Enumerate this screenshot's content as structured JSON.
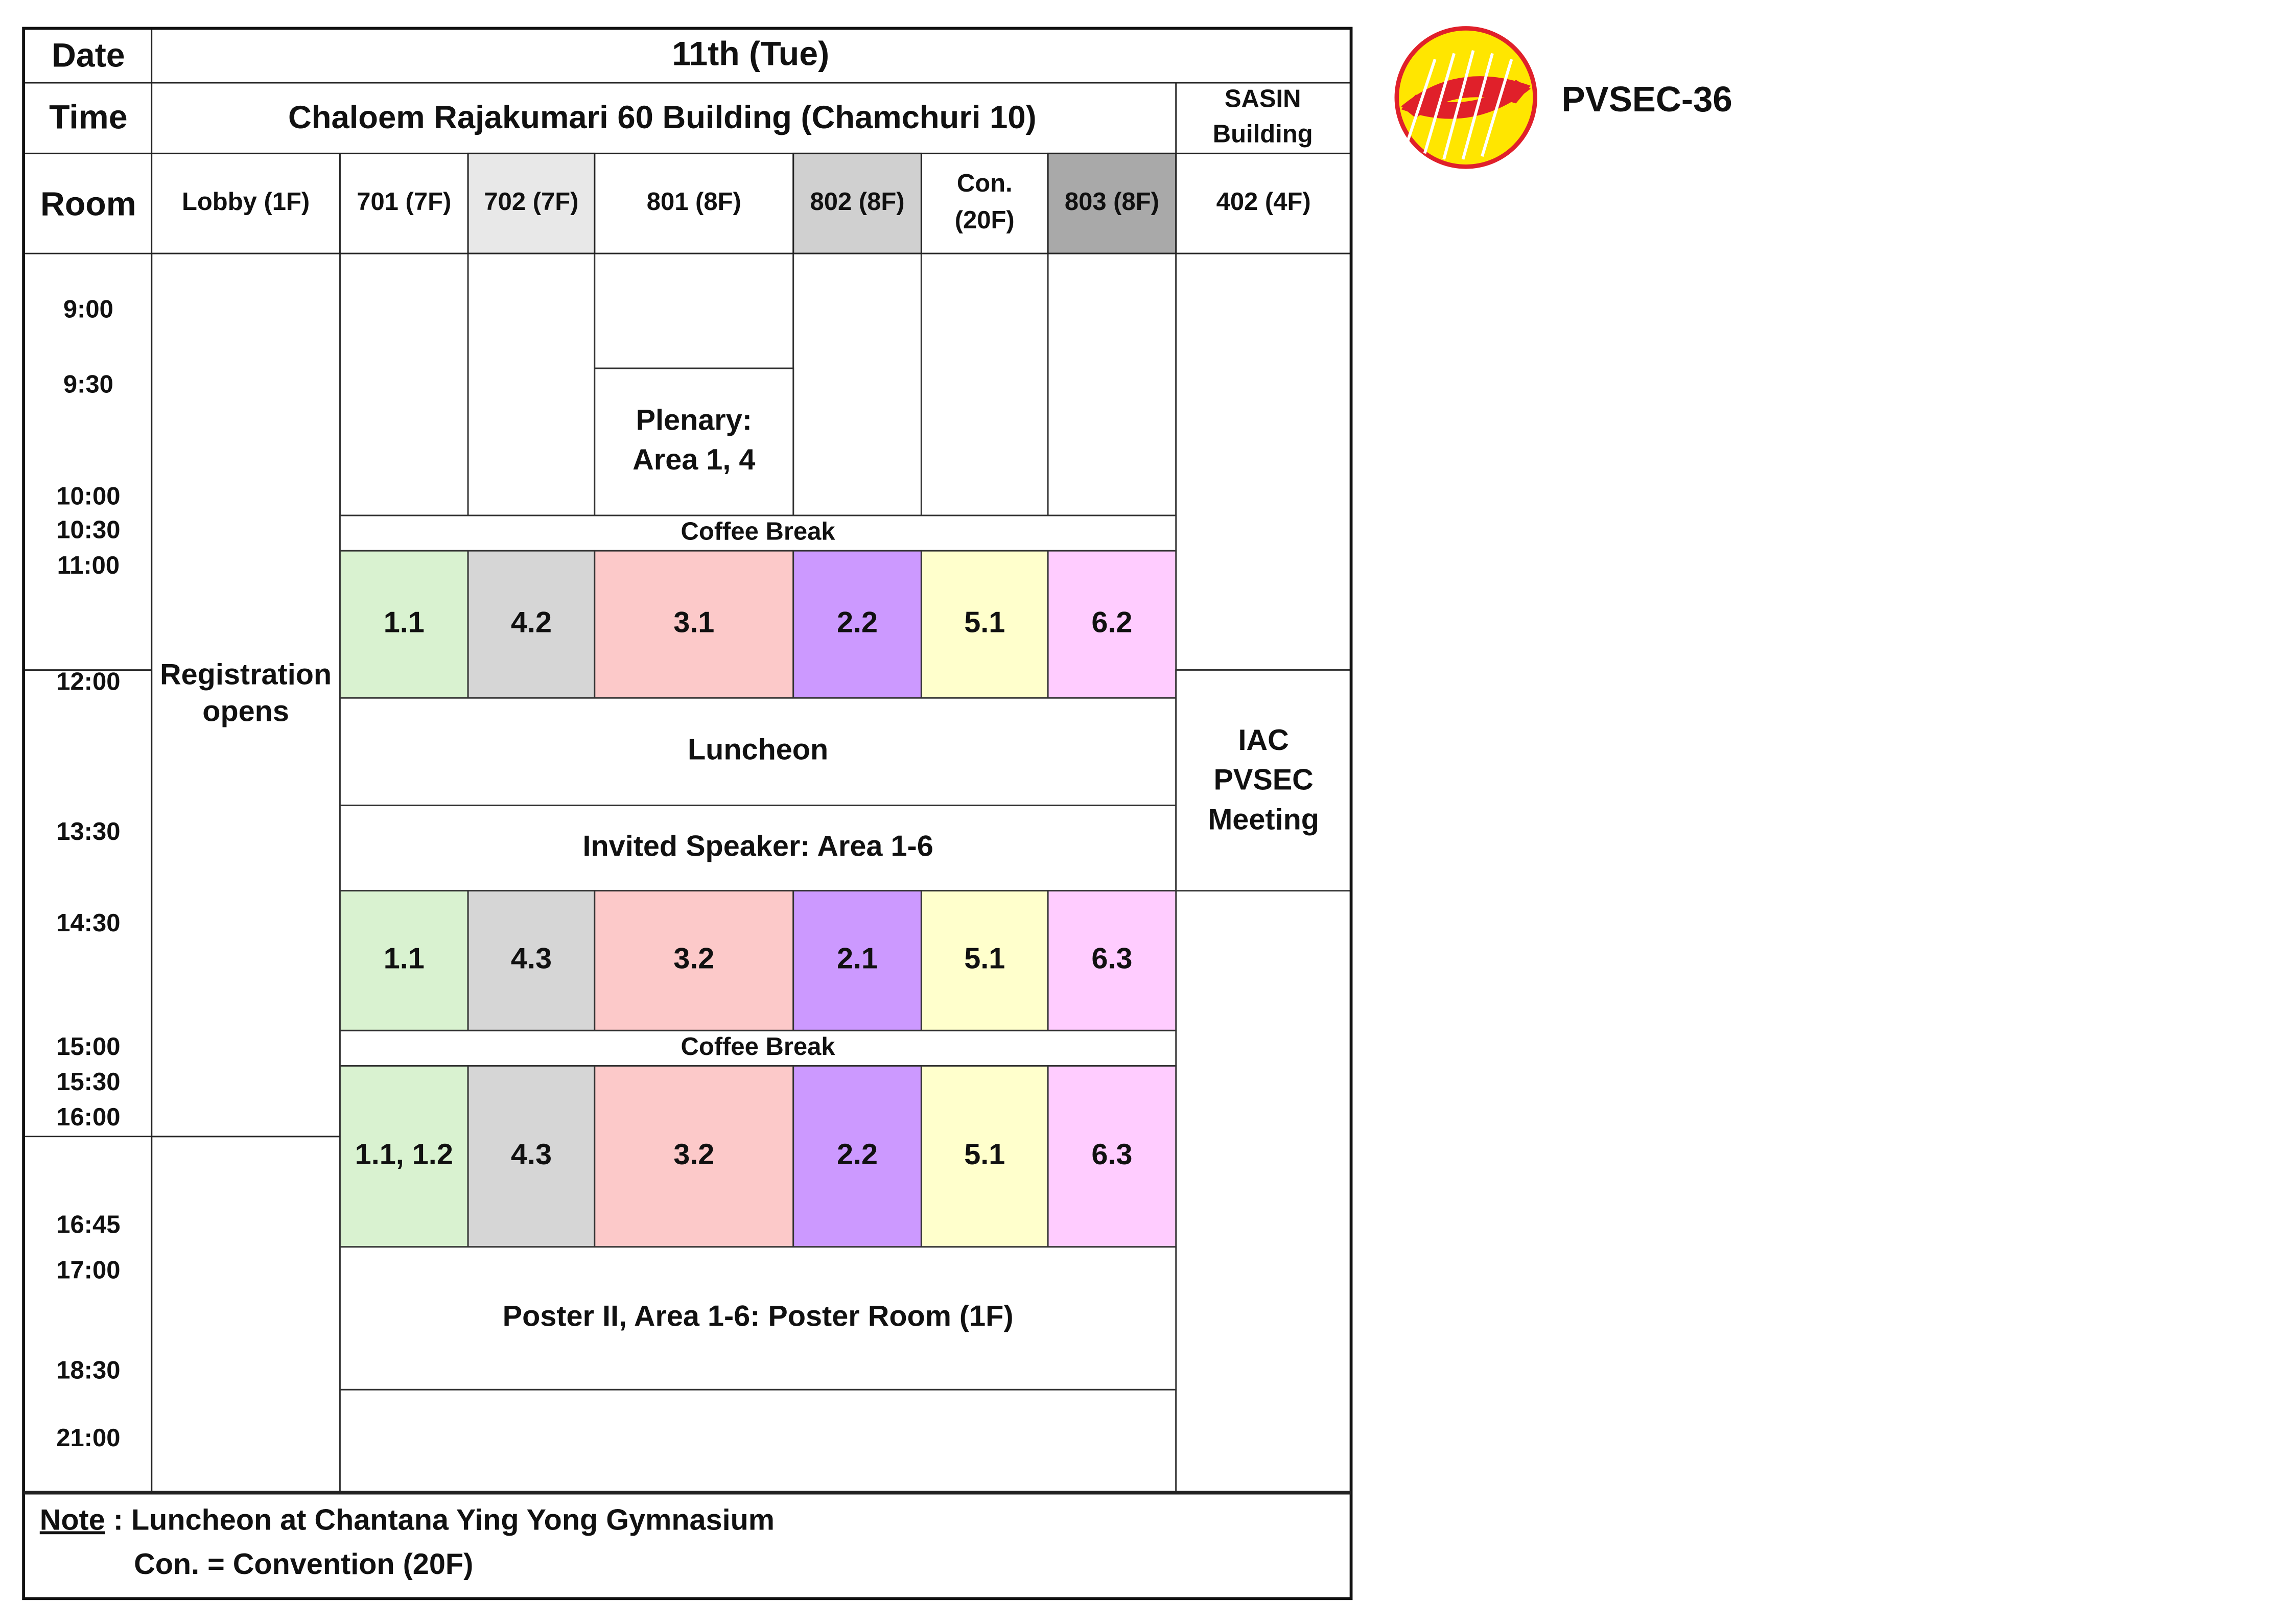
{
  "header": {
    "date_label": "Date",
    "day": "11th (Tue)",
    "time_label": "Time",
    "building": "Chaloem Rajakumari 60 Building (Chamchuri 10)",
    "sasin": [
      "SASIN",
      "Building"
    ],
    "room_label": "Room",
    "rooms": [
      {
        "lines": [
          "Lobby (1F)"
        ]
      },
      {
        "lines": [
          "701 (7F)"
        ]
      },
      {
        "lines": [
          "702 (7F)"
        ],
        "color": "#e8e8e8"
      },
      {
        "lines": [
          "801 (8F)"
        ]
      },
      {
        "lines": [
          "802 (8F)"
        ],
        "color": "#d0d0d0"
      },
      {
        "lines": [
          "Con.",
          "(20F)"
        ]
      },
      {
        "lines": [
          "803 (8F)"
        ],
        "color": "#a9a9a9"
      },
      {
        "lines": [
          "402 (4F)"
        ]
      }
    ]
  },
  "times": [
    "9:00",
    "9:30",
    "10:00",
    "10:30",
    "11:00",
    "12:00",
    "13:30",
    "14:30",
    "15:00",
    "15:30",
    "16:00",
    "16:45",
    "17:00",
    "18:30",
    "21:00"
  ],
  "sessions": [
    {
      "lines": [
        "Registration",
        "opens"
      ]
    },
    {
      "lines": [
        "Plenary:",
        "Area 1, 4"
      ]
    },
    {
      "lines": [
        "Coffee Break"
      ]
    },
    {
      "lines": [
        "1.1"
      ],
      "color": "#d9f2d0"
    },
    {
      "lines": [
        "4.2"
      ],
      "color": "#d6d6d6"
    },
    {
      "lines": [
        "3.1"
      ],
      "color": "#fcc9c9"
    },
    {
      "lines": [
        "2.2"
      ],
      "color": "#cc99ff"
    },
    {
      "lines": [
        "5.1"
      ],
      "color": "#ffffcc"
    },
    {
      "lines": [
        "6.2"
      ],
      "color": "#ffccff"
    },
    {
      "lines": [
        "Luncheon"
      ]
    },
    {
      "lines": [
        "Invited Speaker: Area 1-6"
      ]
    },
    {
      "lines": [
        "1.1"
      ],
      "color": "#d9f2d0"
    },
    {
      "lines": [
        "4.3"
      ],
      "color": "#d6d6d6"
    },
    {
      "lines": [
        "3.2"
      ],
      "color": "#fcc9c9"
    },
    {
      "lines": [
        "2.1"
      ],
      "color": "#cc99ff"
    },
    {
      "lines": [
        "5.1"
      ],
      "color": "#ffffcc"
    },
    {
      "lines": [
        "6.3"
      ],
      "color": "#ffccff"
    },
    {
      "lines": [
        "Coffee Break"
      ]
    },
    {
      "lines": [
        "1.1, 1.2"
      ],
      "color": "#d9f2d0"
    },
    {
      "lines": [
        "4.3"
      ],
      "color": "#d6d6d6"
    },
    {
      "lines": [
        "3.2"
      ],
      "color": "#fcc9c9"
    },
    {
      "lines": [
        "2.2"
      ],
      "color": "#cc99ff"
    },
    {
      "lines": [
        "5.1"
      ],
      "color": "#ffffcc"
    },
    {
      "lines": [
        "6.3"
      ],
      "color": "#ffccff"
    },
    {
      "lines": [
        "Poster II, Area 1-6: Poster Room (1F)"
      ]
    },
    {
      "lines": [
        "IAC",
        "PVSEC",
        "Meeting"
      ]
    }
  ],
  "note": {
    "label": "Note",
    "line1": " : Luncheon at Chantana Ying Yong Gymnasium",
    "line2": "Con. = Convention (20F)"
  },
  "logo": {
    "title": "PVSEC-36"
  }
}
